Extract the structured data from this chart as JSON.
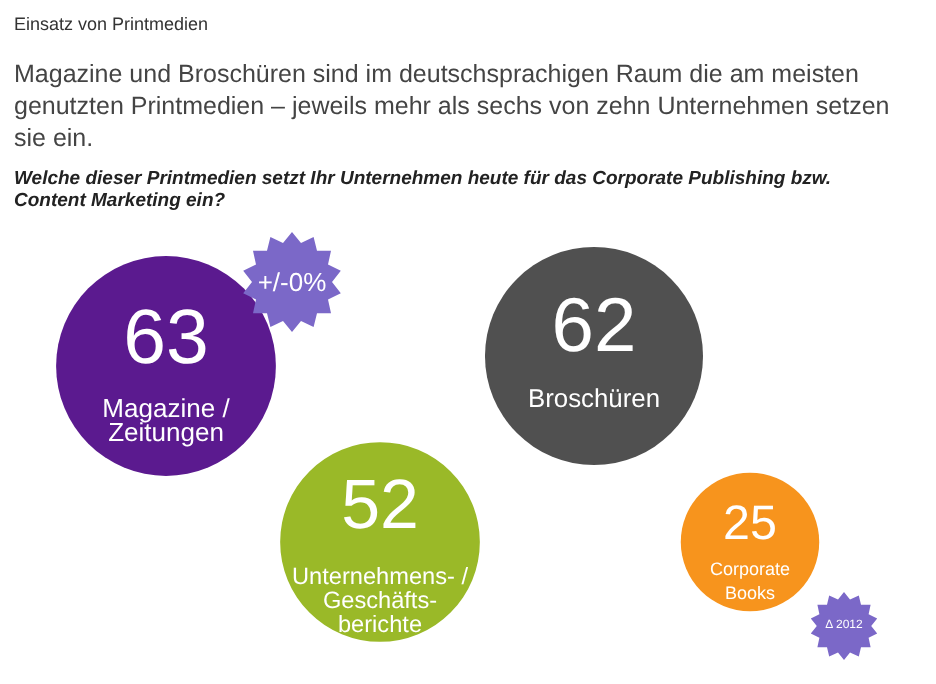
{
  "chart_data": {
    "type": "other",
    "title": "Einsatz von Printmedien",
    "subtitle": "Magazine und Broschüren sind im deutschsprachigen Raum die am meisten genutzten Printmedien – jeweils mehr als sechs von zehn Unternehmen setzen sie ein.",
    "xlabel": "Welche dieser Printmedien setzt Ihr Unternehmen heute für das Corporate Publishing bzw. Content Marketing ein?",
    "categories": [
      "Magazine /\nZeitungen",
      "Broschüren",
      "Unternehmens- /\nGeschäfts-\nberichte",
      "Corporate\nBooks"
    ],
    "values": [
      63,
      62,
      52,
      25
    ],
    "colors": [
      "#5b1a8f",
      "#505050",
      "#9ab928",
      "#f7941d"
    ],
    "data_labels": true,
    "annotations": [
      "+/-0%",
      "Δ 2012"
    ]
  }
}
